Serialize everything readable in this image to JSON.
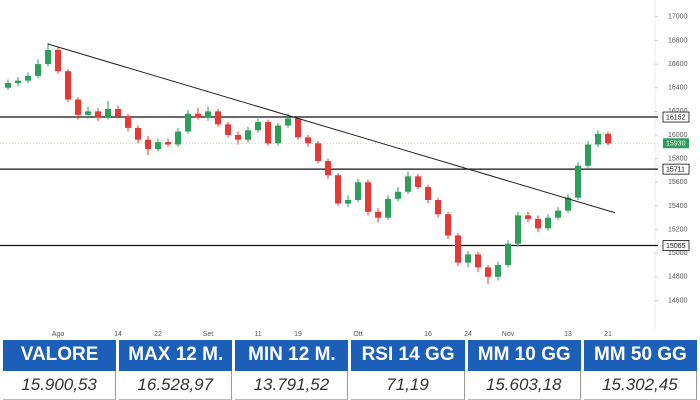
{
  "chart_data": {
    "type": "candlestick",
    "categories": [
      null,
      null,
      null,
      null,
      null,
      "Ago",
      null,
      null,
      null,
      null,
      null,
      "14",
      null,
      null,
      null,
      "22",
      null,
      null,
      null,
      null,
      "Set",
      null,
      null,
      null,
      null,
      "11",
      null,
      null,
      null,
      "19",
      null,
      null,
      null,
      null,
      null,
      "Ott",
      null,
      null,
      null,
      null,
      null,
      null,
      "16",
      null,
      null,
      null,
      "24",
      null,
      null,
      null,
      "Nov",
      null,
      null,
      null,
      null,
      null,
      "13",
      null,
      null,
      null,
      "21"
    ],
    "open": [
      16400,
      16440,
      16460,
      16500,
      16600,
      16720,
      16540,
      16300,
      16170,
      16200,
      16150,
      16220,
      16160,
      16060,
      15960,
      15880,
      15940,
      15920,
      16030,
      16180,
      16150,
      16200,
      16090,
      16000,
      15960,
      16040,
      16110,
      15930,
      16080,
      16140,
      15980,
      15930,
      15780,
      15660,
      15420,
      15450,
      15600,
      15350,
      15300,
      15460,
      15520,
      15650,
      15560,
      15450,
      15330,
      15150,
      14920,
      14990,
      14880,
      14800,
      14900,
      15080,
      15320,
      15290,
      15210,
      15300,
      15360,
      15470,
      15740,
      15920,
      16010
    ],
    "high": [
      16470,
      16490,
      16530,
      16640,
      16780,
      16740,
      16560,
      16320,
      16240,
      16230,
      16290,
      16250,
      16180,
      16080,
      15990,
      15970,
      15970,
      16060,
      16210,
      16230,
      16240,
      16220,
      16110,
      16030,
      16070,
      16140,
      16130,
      16100,
      16180,
      16160,
      16000,
      15950,
      15800,
      15680,
      15490,
      15630,
      15620,
      15380,
      15490,
      15560,
      15690,
      15670,
      15580,
      15470,
      15350,
      15170,
      15020,
      15010,
      14900,
      14930,
      15110,
      15350,
      15350,
      15320,
      15330,
      15390,
      15500,
      15770,
      15950,
      16040,
      16030
    ],
    "low": [
      16380,
      16410,
      16440,
      16480,
      16580,
      16520,
      16280,
      16130,
      16140,
      16120,
      16130,
      16140,
      16030,
      15930,
      15830,
      15860,
      15900,
      15900,
      16010,
      16130,
      16120,
      16070,
      15980,
      15920,
      15940,
      16020,
      15910,
      15910,
      16060,
      15960,
      15900,
      15760,
      15630,
      15400,
      15390,
      15430,
      15320,
      15260,
      15280,
      15440,
      15500,
      15540,
      15420,
      15300,
      15120,
      14890,
      14880,
      14840,
      14740,
      14770,
      14880,
      15060,
      15260,
      15180,
      15190,
      15280,
      15340,
      15450,
      15720,
      15900,
      15910
    ],
    "close": [
      16440,
      16460,
      16500,
      16600,
      16720,
      16540,
      16300,
      16170,
      16200,
      16150,
      16220,
      16160,
      16060,
      15960,
      15880,
      15940,
      15920,
      16030,
      16180,
      16150,
      16200,
      16090,
      16000,
      15960,
      16040,
      16110,
      15930,
      16080,
      16140,
      15980,
      15930,
      15780,
      15660,
      15420,
      15450,
      15600,
      15350,
      15300,
      15460,
      15520,
      15650,
      15560,
      15450,
      15330,
      15150,
      14920,
      14990,
      14880,
      14800,
      14900,
      15080,
      15320,
      15290,
      15210,
      15300,
      15360,
      15470,
      15740,
      15920,
      16010,
      15930
    ],
    "up_color": "#2e9e5b",
    "down_color": "#e53935",
    "ylim": [
      14350,
      17100
    ],
    "yticks": [
      17000,
      16800,
      16600,
      16400,
      16200,
      16000,
      15800,
      15600,
      15400,
      15200,
      15000,
      14800,
      14600
    ],
    "levels": [
      16152,
      15711,
      15065
    ],
    "last_price": 15930,
    "trendline": {
      "x": [
        4,
        60
      ],
      "values": [
        16770,
        15360
      ]
    },
    "grid": false
  },
  "table": {
    "headers": [
      "VALORE",
      "MAX 12 M.",
      "MIN 12 M.",
      "RSI 14 GG",
      "MM 10 GG",
      "MM 50 GG"
    ],
    "rows": [
      [
        "15.900,53",
        "16.528,97",
        "13.791,52",
        "71,19",
        "15.603,18",
        "15.302,45"
      ]
    ]
  }
}
